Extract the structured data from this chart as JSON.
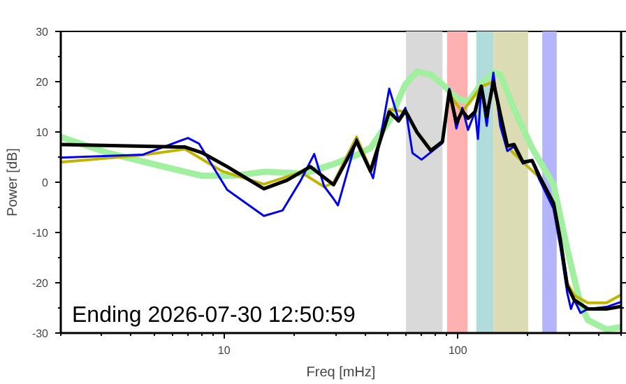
{
  "chart_data": {
    "type": "line",
    "xlabel": "Freq [mHz]",
    "ylabel": "Power [dB]",
    "log": "x",
    "grid": false,
    "marker": "none",
    "line_style": "solid",
    "xlim": [
      2,
      500
    ],
    "xticks": [
      {
        "value": 2,
        "label": null
      },
      {
        "value": 3,
        "label": null
      },
      {
        "value": 4,
        "label": null
      },
      {
        "value": 5,
        "label": null
      },
      {
        "value": 6,
        "label": null
      },
      {
        "value": 7,
        "label": null
      },
      {
        "value": 8,
        "label": null
      },
      {
        "value": 9,
        "label": null
      },
      10,
      {
        "value": 20,
        "label": null
      },
      {
        "value": 30,
        "label": null
      },
      {
        "value": 40,
        "label": null
      },
      {
        "value": 50,
        "label": null
      },
      {
        "value": 60,
        "label": null
      },
      {
        "value": 70,
        "label": null
      },
      {
        "value": 80,
        "label": null
      },
      {
        "value": 90,
        "label": null
      },
      100,
      {
        "value": 200,
        "label": null
      },
      {
        "value": 300,
        "label": null
      },
      {
        "value": 400,
        "label": null
      },
      {
        "value": 500,
        "label": null
      }
    ],
    "ylim": [
      -30,
      30
    ],
    "yticks": [
      -30,
      {
        "value": -25,
        "label": null
      },
      -20,
      {
        "value": -15,
        "label": null
      },
      -10,
      {
        "value": -5,
        "label": null
      },
      0,
      {
        "value": 5,
        "label": null
      },
      10,
      {
        "value": 15,
        "label": null
      },
      20,
      {
        "value": 25,
        "label": null
      },
      30
    ],
    "bands": [
      {
        "axis": "x",
        "from": 60,
        "to": 86,
        "color": "#d9d9d9"
      },
      {
        "axis": "x",
        "from": 90,
        "to": 110,
        "color": "#ffb0b0"
      },
      {
        "axis": "x",
        "from": 120,
        "to": 142,
        "color": "#b0dcdc"
      },
      {
        "axis": "x",
        "from": 142,
        "to": 200,
        "color": "#dcdcb4"
      },
      {
        "axis": "x",
        "from": 230,
        "to": 265,
        "color": "#b4b4fa"
      }
    ],
    "series": [
      {
        "color": "#a0f0a0",
        "x": [
          2,
          3.2,
          5.5,
          8,
          11,
          15,
          22,
          26.8,
          29.4,
          36.9,
          42.3,
          50.9,
          59.7,
          67,
          76.7,
          86,
          98.6,
          110.6,
          126,
          142,
          152,
          174,
          208,
          257,
          294,
          335,
          360,
          433,
          500
        ],
        "values": [
          9,
          5.8,
          3.1,
          1.3,
          1.3,
          2.1,
          1.7,
          3,
          3.6,
          5.4,
          6.8,
          12.2,
          19.5,
          22,
          21.4,
          19.5,
          16.8,
          15.9,
          19.5,
          21.8,
          21.4,
          14.6,
          6.8,
          -0.5,
          -13.3,
          -24.3,
          -27.4,
          -29.3,
          -28.8
        ]
      },
      {
        "color": "#c0b400",
        "x": [
          2,
          4.5,
          6.8,
          9.8,
          14.8,
          21.3,
          26.8,
          29.4,
          36.9,
          42.3,
          50.9,
          59.7,
          67,
          76.7,
          86,
          92,
          104.6,
          126,
          142,
          152,
          163,
          190,
          223,
          257,
          275,
          294,
          315,
          360,
          433,
          500
        ],
        "values": [
          4,
          5.4,
          6.6,
          2.2,
          -0.4,
          2,
          -0.9,
          -0.1,
          9,
          2.5,
          14.5,
          14,
          10,
          6.5,
          8,
          17.5,
          14,
          19,
          20,
          13,
          7,
          4,
          1,
          -4,
          -12,
          -20,
          -22.5,
          -24,
          -24,
          -22.4
        ]
      },
      {
        "color": "#0000ee",
        "x": [
          2,
          4.5,
          7,
          7.8,
          10.3,
          14.8,
          17.8,
          21.3,
          24.3,
          26.8,
          29.4,
          30.7,
          36.9,
          43.4,
          50.9,
          55.8,
          59.7,
          64,
          70,
          86,
          92,
          98.6,
          104.6,
          110.6,
          118.5,
          122,
          126,
          133,
          142,
          152,
          163,
          174,
          190,
          208,
          223,
          257,
          275,
          294,
          305,
          315,
          335,
          360,
          433,
          500
        ],
        "values": [
          4.9,
          5.5,
          8.8,
          7.7,
          -1.5,
          -6.7,
          -5.6,
          0.4,
          5.6,
          -0.8,
          -3.3,
          -4.6,
          8.6,
          0.8,
          18.6,
          12.5,
          14.8,
          5.8,
          4.5,
          7.8,
          18.6,
          10.7,
          14.8,
          10.4,
          14,
          8.6,
          19,
          11.2,
          21.8,
          11.2,
          6.2,
          7.1,
          3.7,
          4.3,
          0.6,
          -5.3,
          -13,
          -22,
          -25.2,
          -23.4,
          -26,
          -25.2,
          -24.8,
          -23.8
        ]
      },
      {
        "color": "#000000",
        "x": [
          2,
          6.8,
          8.1,
          10.3,
          14.8,
          18.6,
          23.4,
          29.4,
          36.9,
          42.3,
          50.9,
          55.8,
          59.7,
          67,
          76.7,
          86,
          92,
          98.6,
          104.6,
          110.6,
          118.5,
          126,
          133,
          142,
          152,
          163,
          174,
          190,
          208,
          223,
          257,
          275,
          294,
          315,
          360,
          433,
          500
        ],
        "values": [
          7.5,
          7,
          5.8,
          3.1,
          -1.3,
          0.4,
          3.1,
          -0.5,
          8.1,
          2.2,
          14,
          12.2,
          14.2,
          9.9,
          6.3,
          8.1,
          18.2,
          11.8,
          14.2,
          12.7,
          14,
          19.1,
          13.1,
          20,
          13.6,
          7.2,
          7.5,
          4,
          4.3,
          1.3,
          -4.2,
          -11.5,
          -20.6,
          -23.4,
          -25.2,
          -25.2,
          -24.7
        ]
      }
    ],
    "annotations": [
      "Ending 2026-07-30 12:50:59"
    ]
  }
}
